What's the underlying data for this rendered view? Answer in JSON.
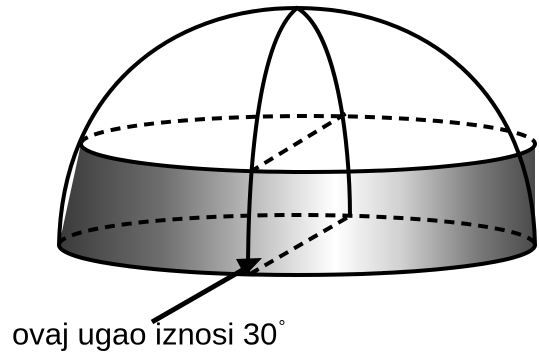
{
  "figure": {
    "caption_text": "ovaj ugao iznosi 30",
    "caption_degree": "°"
  },
  "colors": {
    "stroke": "#000000",
    "band_dark": "#3a3a3a",
    "band_light": "#ffffff"
  }
}
